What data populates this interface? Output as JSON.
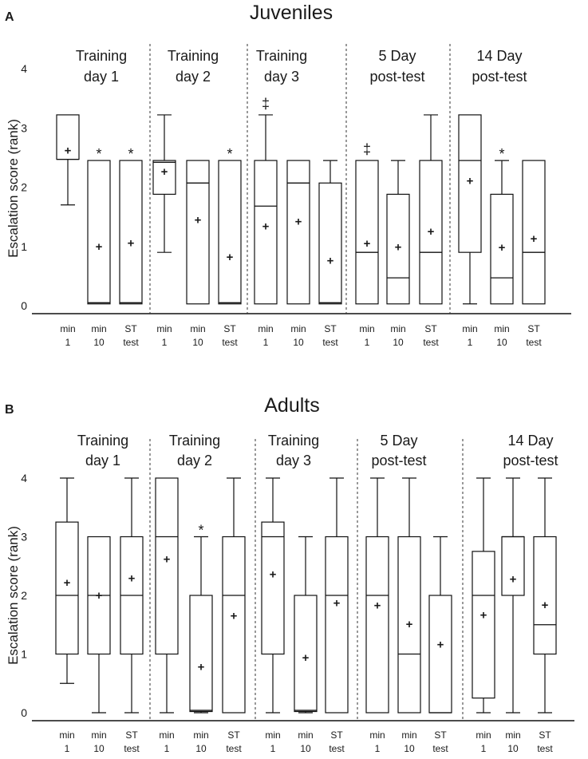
{
  "chart_data": [
    {
      "type": "box",
      "panel_label": "A",
      "title": "Juveniles",
      "ylabel": "Escalation score (rank)",
      "ylim": [
        0,
        4
      ],
      "yticks": [
        "0",
        "1",
        "2",
        "3",
        "4"
      ],
      "groups": [
        {
          "label_line1": "Training",
          "label_line2": "day 1",
          "boxes": [
            {
              "xlabel_line1": "min",
              "xlabel_line2": "1",
              "min": 1.7,
              "q1": 2.47,
              "median": 2.47,
              "q3": 3.22,
              "max": 3.22,
              "mean": 2.62,
              "annotation": ""
            },
            {
              "xlabel_line1": "min",
              "xlabel_line2": "10",
              "min": 0.03,
              "q1": 0.03,
              "median": 0.05,
              "q3": 2.45,
              "max": 2.45,
              "mean": 1.0,
              "annotation": "*"
            },
            {
              "xlabel_line1": "ST",
              "xlabel_line2": "test",
              "min": 0.03,
              "q1": 0.03,
              "median": 0.05,
              "q3": 2.45,
              "max": 2.45,
              "mean": 1.06,
              "annotation": "*"
            }
          ]
        },
        {
          "label_line1": "Training",
          "label_line2": "day 2",
          "boxes": [
            {
              "xlabel_line1": "min",
              "xlabel_line2": "1",
              "min": 0.9,
              "q1": 1.88,
              "median": 2.42,
              "q3": 2.45,
              "max": 3.22,
              "mean": 2.26,
              "annotation": ""
            },
            {
              "xlabel_line1": "min",
              "xlabel_line2": "10",
              "min": 0.03,
              "q1": 0.03,
              "median": 2.07,
              "q3": 2.45,
              "max": 2.45,
              "mean": 1.45,
              "annotation": ""
            },
            {
              "xlabel_line1": "ST",
              "xlabel_line2": "test",
              "min": 0.03,
              "q1": 0.03,
              "median": 0.05,
              "q3": 2.45,
              "max": 2.45,
              "mean": 0.82,
              "annotation": "*"
            }
          ]
        },
        {
          "label_line1": "Training",
          "label_line2": "day 3",
          "boxes": [
            {
              "xlabel_line1": "min",
              "xlabel_line2": "1",
              "min": 0.03,
              "q1": 0.03,
              "median": 1.68,
              "q3": 2.45,
              "max": 3.22,
              "mean": 1.34,
              "annotation": "‡"
            },
            {
              "xlabel_line1": "min",
              "xlabel_line2": "10",
              "min": 0.03,
              "q1": 0.03,
              "median": 2.07,
              "q3": 2.45,
              "max": 2.45,
              "mean": 1.42,
              "annotation": ""
            },
            {
              "xlabel_line1": "ST",
              "xlabel_line2": "test",
              "min": 0.03,
              "q1": 0.03,
              "median": 0.05,
              "q3": 2.07,
              "max": 2.45,
              "mean": 0.76,
              "annotation": ""
            }
          ]
        },
        {
          "label_line1": "5 Day",
          "label_line2": "post-test",
          "boxes": [
            {
              "xlabel_line1": "min",
              "xlabel_line2": "1",
              "min": 0.03,
              "q1": 0.03,
              "median": 0.9,
              "q3": 2.45,
              "max": 2.45,
              "mean": 1.05,
              "annotation": "‡"
            },
            {
              "xlabel_line1": "min",
              "xlabel_line2": "10",
              "min": 0.03,
              "q1": 0.03,
              "median": 0.47,
              "q3": 1.88,
              "max": 2.45,
              "mean": 0.99,
              "annotation": ""
            },
            {
              "xlabel_line1": "ST",
              "xlabel_line2": "test",
              "min": 0.03,
              "q1": 0.03,
              "median": 0.9,
              "q3": 2.45,
              "max": 3.22,
              "mean": 1.25,
              "annotation": ""
            }
          ]
        },
        {
          "label_line1": "14 Day",
          "label_line2": "post-test",
          "boxes": [
            {
              "xlabel_line1": "min",
              "xlabel_line2": "1",
              "min": 0.03,
              "q1": 0.9,
              "median": 2.45,
              "q3": 3.22,
              "max": 3.22,
              "mean": 2.11,
              "annotation": ""
            },
            {
              "xlabel_line1": "min",
              "xlabel_line2": "10",
              "min": 0.03,
              "q1": 0.03,
              "median": 0.47,
              "q3": 1.88,
              "max": 2.45,
              "mean": 0.98,
              "annotation": "*"
            },
            {
              "xlabel_line1": "ST",
              "xlabel_line2": "test",
              "min": 0.03,
              "q1": 0.03,
              "median": 0.9,
              "q3": 2.45,
              "max": 2.45,
              "mean": 1.13,
              "annotation": ""
            }
          ]
        }
      ]
    },
    {
      "type": "box",
      "panel_label": "B",
      "title": "Adults",
      "ylabel": "Escalation score (rank)",
      "ylim": [
        0,
        4
      ],
      "yticks": [
        "0",
        "1",
        "2",
        "3",
        "4"
      ],
      "groups": [
        {
          "label_line1": "Training",
          "label_line2": "day 1",
          "boxes": [
            {
              "xlabel_line1": "min",
              "xlabel_line2": "1",
              "min": 0.5,
              "q1": 1.0,
              "median": 2.0,
              "q3": 3.25,
              "max": 4.0,
              "mean": 2.22,
              "annotation": ""
            },
            {
              "xlabel_line1": "min",
              "xlabel_line2": "10",
              "min": 0.0,
              "q1": 1.0,
              "median": 2.0,
              "q3": 3.0,
              "max": 3.0,
              "mean": 2.0,
              "annotation": ""
            },
            {
              "xlabel_line1": "ST",
              "xlabel_line2": "test",
              "min": 0.0,
              "q1": 1.0,
              "median": 2.0,
              "q3": 3.0,
              "max": 4.0,
              "mean": 2.29,
              "annotation": ""
            }
          ]
        },
        {
          "label_line1": "Training",
          "label_line2": "day 2",
          "boxes": [
            {
              "xlabel_line1": "min",
              "xlabel_line2": "1",
              "min": 0.0,
              "q1": 1.0,
              "median": 3.0,
              "q3": 4.0,
              "max": 4.0,
              "mean": 2.62,
              "annotation": ""
            },
            {
              "xlabel_line1": "min",
              "xlabel_line2": "10",
              "min": 0.0,
              "q1": 0.02,
              "median": 0.04,
              "q3": 2.0,
              "max": 3.0,
              "mean": 0.78,
              "annotation": "*"
            },
            {
              "xlabel_line1": "ST",
              "xlabel_line2": "test",
              "min": 0.0,
              "q1": 0.0,
              "median": 2.0,
              "q3": 3.0,
              "max": 4.0,
              "mean": 1.65,
              "annotation": ""
            }
          ]
        },
        {
          "label_line1": "Training",
          "label_line2": "day 3",
          "boxes": [
            {
              "xlabel_line1": "min",
              "xlabel_line2": "1",
              "min": 0.0,
              "q1": 1.0,
              "median": 3.0,
              "q3": 3.25,
              "max": 4.0,
              "mean": 2.36,
              "annotation": ""
            },
            {
              "xlabel_line1": "min",
              "xlabel_line2": "10",
              "min": 0.0,
              "q1": 0.02,
              "median": 0.04,
              "q3": 2.0,
              "max": 3.0,
              "mean": 0.94,
              "annotation": ""
            },
            {
              "xlabel_line1": "ST",
              "xlabel_line2": "test",
              "min": 0.0,
              "q1": 0.0,
              "median": 2.0,
              "q3": 3.0,
              "max": 4.0,
              "mean": 1.87,
              "annotation": ""
            }
          ]
        },
        {
          "label_line1": "5 Day",
          "label_line2": "post-test",
          "boxes": [
            {
              "xlabel_line1": "min",
              "xlabel_line2": "1",
              "min": 0.0,
              "q1": 0.0,
              "median": 2.0,
              "q3": 3.0,
              "max": 4.0,
              "mean": 1.83,
              "annotation": ""
            },
            {
              "xlabel_line1": "min",
              "xlabel_line2": "10",
              "min": 0.0,
              "q1": 0.0,
              "median": 1.0,
              "q3": 3.0,
              "max": 4.0,
              "mean": 1.51,
              "annotation": ""
            },
            {
              "xlabel_line1": "ST",
              "xlabel_line2": "test",
              "min": 0.0,
              "q1": 0.0,
              "median": 0.0,
              "q3": 2.0,
              "max": 3.0,
              "mean": 1.16,
              "annotation": ""
            }
          ]
        },
        {
          "label_line1": "14 Day",
          "label_line2": "post-test",
          "boxes": [
            {
              "xlabel_line1": "min",
              "xlabel_line2": "1",
              "min": 0.0,
              "q1": 0.25,
              "median": 2.0,
              "q3": 2.75,
              "max": 4.0,
              "mean": 1.67,
              "annotation": ""
            },
            {
              "xlabel_line1": "min",
              "xlabel_line2": "10",
              "min": 0.0,
              "q1": 2.0,
              "median": 3.0,
              "q3": 3.0,
              "max": 4.0,
              "mean": 2.28,
              "annotation": ""
            },
            {
              "xlabel_line1": "ST",
              "xlabel_line2": "test",
              "min": 0.0,
              "q1": 1.0,
              "median": 1.5,
              "q3": 3.0,
              "max": 4.0,
              "mean": 1.84,
              "annotation": ""
            }
          ]
        }
      ]
    }
  ]
}
